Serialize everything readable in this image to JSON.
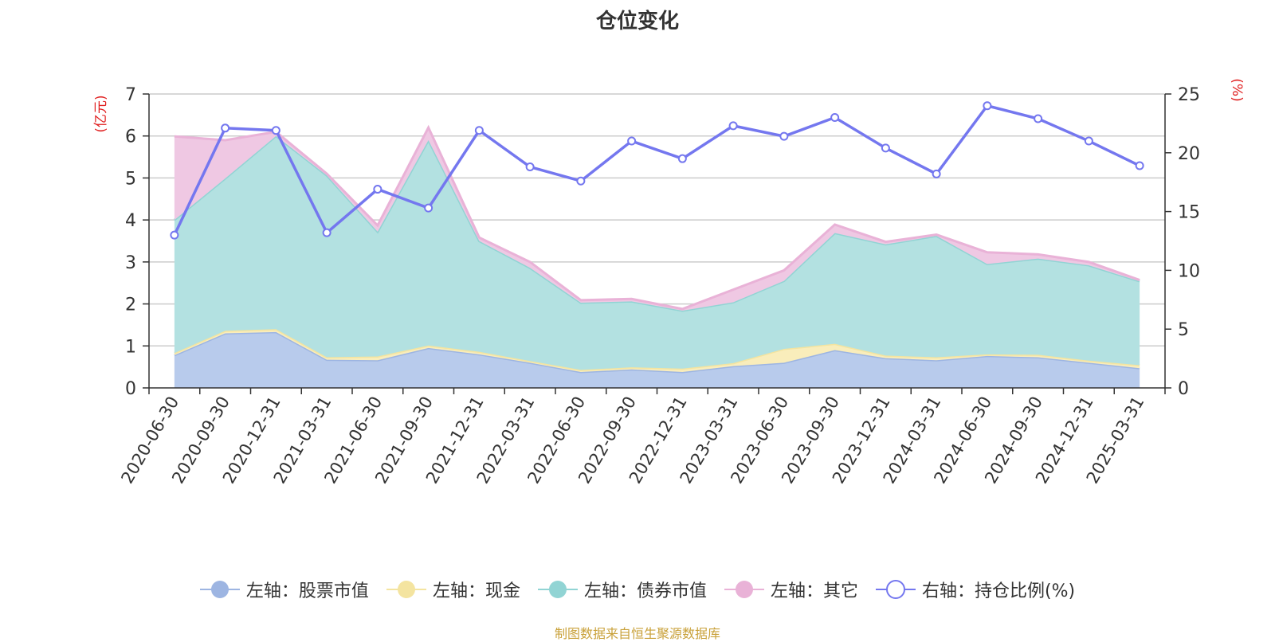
{
  "title": "仓位变化",
  "source": "制图数据来自恒生聚源数据库",
  "chart_data": {
    "type": "area",
    "title": "仓位变化",
    "categories": [
      "2020-06-30",
      "2020-09-30",
      "2020-12-31",
      "2021-03-31",
      "2021-06-30",
      "2021-09-30",
      "2021-12-31",
      "2022-03-31",
      "2022-06-30",
      "2022-09-30",
      "2022-12-31",
      "2023-03-31",
      "2023-06-30",
      "2023-09-30",
      "2023-12-31",
      "2024-03-31",
      "2024-06-30",
      "2024-09-30",
      "2024-12-31",
      "2025-03-31"
    ],
    "left_axis": {
      "label": "(亿元)",
      "range": [
        0,
        7
      ],
      "ticks": [
        "0",
        "1",
        "2",
        "3",
        "4",
        "5",
        "6",
        "7"
      ]
    },
    "right_axis": {
      "label": "(%)",
      "range": [
        0,
        25
      ],
      "ticks": [
        "0",
        "5",
        "10",
        "15",
        "20",
        "25"
      ]
    },
    "grid": true,
    "legend_position": "bottom",
    "series": [
      {
        "name": "左轴：股票市值",
        "axis": "left",
        "stacked": true,
        "color": "#9db5e2",
        "fill": "#b8cbec",
        "values": [
          0.78,
          1.3,
          1.33,
          0.67,
          0.66,
          0.95,
          0.8,
          0.6,
          0.38,
          0.44,
          0.38,
          0.52,
          0.6,
          0.9,
          0.71,
          0.66,
          0.76,
          0.73,
          0.6,
          0.47
        ]
      },
      {
        "name": "左轴：现金",
        "axis": "left",
        "stacked": true,
        "color": "#f4e4a0",
        "fill": "#f9edbb",
        "values": [
          0.05,
          0.06,
          0.07,
          0.06,
          0.09,
          0.06,
          0.06,
          0.04,
          0.05,
          0.05,
          0.08,
          0.07,
          0.33,
          0.15,
          0.06,
          0.07,
          0.04,
          0.06,
          0.05,
          0.07
        ]
      },
      {
        "name": "左轴：债券市值",
        "axis": "left",
        "stacked": true,
        "color": "#91d4d4",
        "fill": "#b3e1e1",
        "values": [
          3.17,
          3.63,
          4.6,
          4.33,
          2.97,
          4.89,
          2.64,
          2.22,
          1.6,
          1.57,
          1.38,
          1.45,
          1.62,
          2.64,
          2.65,
          2.89,
          2.15,
          2.29,
          2.27,
          2.0
        ]
      },
      {
        "name": "左轴：其它",
        "axis": "left",
        "stacked": true,
        "color": "#e9b2d7",
        "fill": "#efc8e3",
        "values": [
          1.99,
          0.91,
          0.1,
          0.04,
          0.15,
          0.3,
          0.08,
          0.14,
          0.06,
          0.06,
          0.04,
          0.3,
          0.25,
          0.2,
          0.06,
          0.03,
          0.28,
          0.1,
          0.08,
          0.03
        ]
      },
      {
        "name": "右轴：持仓比例(%)",
        "axis": "right",
        "type": "line",
        "color": "#7477ef",
        "values": [
          13.0,
          22.1,
          21.9,
          13.2,
          16.9,
          15.3,
          21.9,
          18.8,
          17.6,
          21.0,
          19.5,
          22.3,
          21.4,
          23.0,
          20.4,
          18.2,
          24.0,
          22.9,
          21.0,
          18.9
        ]
      }
    ]
  }
}
